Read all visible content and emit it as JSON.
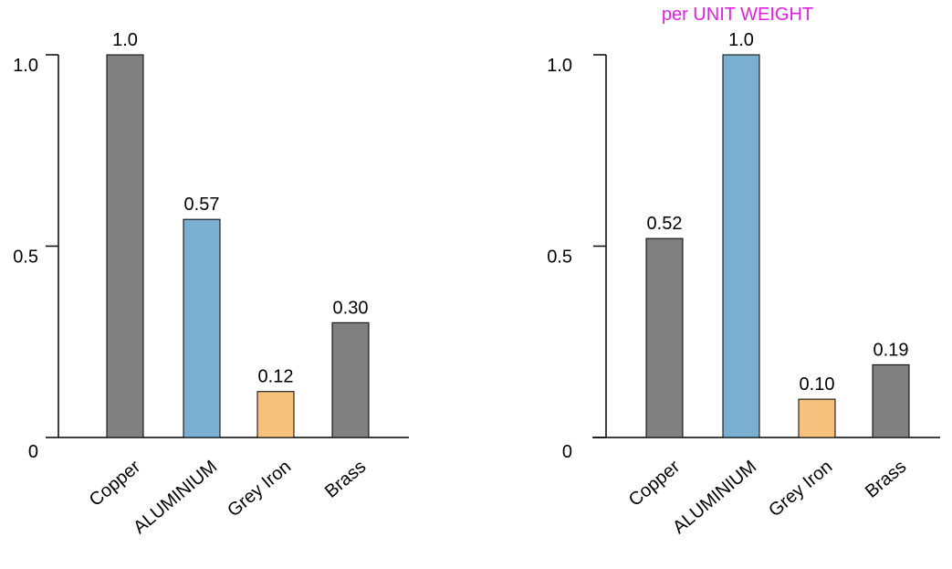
{
  "chart_data": [
    {
      "type": "bar",
      "title": "",
      "xlabel": "",
      "ylabel": "",
      "ylim": [
        0,
        1.0
      ],
      "yticks": [
        {
          "value": 0,
          "label": "0"
        },
        {
          "value": 0.5,
          "label": "0.5"
        },
        {
          "value": 1.0,
          "label": "1.0"
        }
      ],
      "categories": [
        "Copper",
        "ALUMINIUM",
        "Grey Iron",
        "Brass"
      ],
      "values": [
        1.0,
        0.57,
        0.12,
        0.3
      ],
      "value_labels": [
        "1.0",
        "0.57",
        "0.12",
        "0.30"
      ],
      "colors": [
        "#808080",
        "#7bafd2",
        "#f7c17e",
        "#808080"
      ],
      "grid": false,
      "legend": "none"
    },
    {
      "type": "bar",
      "title": "per UNIT WEIGHT",
      "title_color": "#e020e0",
      "xlabel": "",
      "ylabel": "",
      "ylim": [
        0,
        1.0
      ],
      "yticks": [
        {
          "value": 0,
          "label": "0"
        },
        {
          "value": 0.5,
          "label": "0.5"
        },
        {
          "value": 1.0,
          "label": "1.0"
        }
      ],
      "categories": [
        "Copper",
        "ALUMINIUM",
        "Grey Iron",
        "Brass"
      ],
      "values": [
        0.52,
        1.0,
        0.1,
        0.19
      ],
      "value_labels": [
        "0.52",
        "1.0",
        "0.10",
        "0.19"
      ],
      "colors": [
        "#808080",
        "#7bafd2",
        "#f7c17e",
        "#808080"
      ],
      "grid": false,
      "legend": "none"
    }
  ]
}
